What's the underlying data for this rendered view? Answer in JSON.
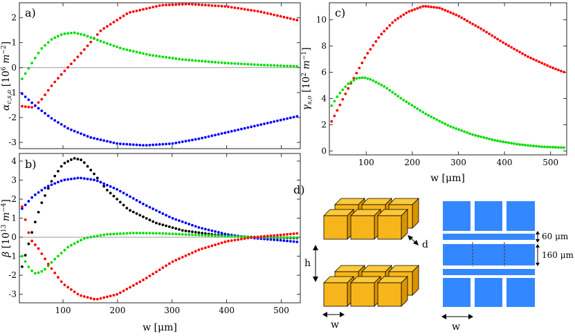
{
  "chart_data": [
    {
      "id": "a",
      "type": "scatter",
      "panel_label": "a)",
      "ylabel": "α_{c,s,o} [10^6 m^-2]",
      "xlim": [
        20,
        535
      ],
      "ylim": [
        -3.25,
        2.6
      ],
      "x_ticks": [
        100,
        200,
        300,
        400,
        500
      ],
      "y_ticks": [
        -3,
        -2,
        -1,
        0,
        1,
        2
      ],
      "zero_line": true,
      "series": [
        {
          "name": "red",
          "color": "#ff0000",
          "keypoints": [
            [
              25,
              -1.55
            ],
            [
              45,
              -1.6
            ],
            [
              60,
              -1.3
            ],
            [
              80,
              -0.7
            ],
            [
              100,
              -0.2
            ],
            [
              130,
              0.5
            ],
            [
              170,
              1.5
            ],
            [
              220,
              2.2
            ],
            [
              280,
              2.5
            ],
            [
              330,
              2.55
            ],
            [
              400,
              2.45
            ],
            [
              460,
              2.25
            ],
            [
              530,
              1.9
            ]
          ]
        },
        {
          "name": "green",
          "color": "#00dd00",
          "keypoints": [
            [
              25,
              -0.45
            ],
            [
              35,
              -0.1
            ],
            [
              45,
              0.25
            ],
            [
              60,
              0.75
            ],
            [
              80,
              1.15
            ],
            [
              100,
              1.35
            ],
            [
              120,
              1.4
            ],
            [
              140,
              1.3
            ],
            [
              170,
              1.05
            ],
            [
              210,
              0.75
            ],
            [
              260,
              0.5
            ],
            [
              320,
              0.32
            ],
            [
              400,
              0.18
            ],
            [
              470,
              0.1
            ],
            [
              530,
              0.05
            ]
          ]
        },
        {
          "name": "blue",
          "color": "#0000ff",
          "keypoints": [
            [
              25,
              -1.05
            ],
            [
              50,
              -1.55
            ],
            [
              80,
              -2.05
            ],
            [
              110,
              -2.45
            ],
            [
              150,
              -2.8
            ],
            [
              200,
              -3.05
            ],
            [
              250,
              -3.12
            ],
            [
              300,
              -3.05
            ],
            [
              350,
              -2.85
            ],
            [
              400,
              -2.6
            ],
            [
              450,
              -2.35
            ],
            [
              500,
              -2.1
            ],
            [
              530,
              -1.95
            ]
          ]
        }
      ]
    },
    {
      "id": "b",
      "type": "scatter",
      "panel_label": "b)",
      "xlabel": "w [μm]",
      "ylabel": "β [10^13 m^-4]",
      "xlim": [
        20,
        535
      ],
      "ylim": [
        -3.45,
        4.4
      ],
      "x_ticks": [
        100,
        200,
        300,
        400,
        500
      ],
      "y_ticks": [
        -3,
        -2,
        -1,
        0,
        1,
        2,
        3,
        4
      ],
      "zero_line": true,
      "series": [
        {
          "name": "black",
          "color": "#000000",
          "keypoints": [
            [
              25,
              -1.55
            ],
            [
              35,
              -0.55
            ],
            [
              45,
              0.45
            ],
            [
              60,
              1.75
            ],
            [
              80,
              3.0
            ],
            [
              100,
              3.85
            ],
            [
              120,
              4.15
            ],
            [
              135,
              4.05
            ],
            [
              155,
              3.4
            ],
            [
              180,
              2.5
            ],
            [
              220,
              1.45
            ],
            [
              270,
              0.75
            ],
            [
              320,
              0.35
            ],
            [
              380,
              0.12
            ],
            [
              440,
              0.02
            ],
            [
              480,
              -0.02
            ],
            [
              530,
              -0.05
            ]
          ]
        },
        {
          "name": "blue",
          "color": "#0000ff",
          "keypoints": [
            [
              25,
              1.5
            ],
            [
              45,
              2.15
            ],
            [
              70,
              2.65
            ],
            [
              100,
              3.0
            ],
            [
              130,
              3.12
            ],
            [
              160,
              3.0
            ],
            [
              200,
              2.5
            ],
            [
              250,
              1.7
            ],
            [
              300,
              1.0
            ],
            [
              350,
              0.5
            ],
            [
              400,
              0.15
            ],
            [
              450,
              -0.05
            ],
            [
              500,
              -0.17
            ],
            [
              530,
              -0.25
            ]
          ]
        },
        {
          "name": "green",
          "color": "#00dd00",
          "keypoints": [
            [
              25,
              -1.0
            ],
            [
              40,
              -1.7
            ],
            [
              50,
              -1.92
            ],
            [
              65,
              -1.75
            ],
            [
              85,
              -1.15
            ],
            [
              110,
              -0.5
            ],
            [
              140,
              -0.05
            ],
            [
              180,
              0.15
            ],
            [
              230,
              0.22
            ],
            [
              280,
              0.2
            ],
            [
              340,
              0.12
            ],
            [
              400,
              0.05
            ],
            [
              460,
              0.0
            ],
            [
              530,
              -0.02
            ]
          ]
        },
        {
          "name": "red",
          "color": "#ff0000",
          "keypoints": [
            [
              25,
              1.6
            ],
            [
              40,
              -0.1
            ],
            [
              55,
              -0.6
            ],
            [
              75,
              -1.5
            ],
            [
              100,
              -2.45
            ],
            [
              130,
              -3.05
            ],
            [
              160,
              -3.28
            ],
            [
              200,
              -3.0
            ],
            [
              250,
              -2.2
            ],
            [
              300,
              -1.3
            ],
            [
              350,
              -0.65
            ],
            [
              400,
              -0.22
            ],
            [
              450,
              0.0
            ],
            [
              500,
              0.12
            ],
            [
              530,
              0.2
            ]
          ]
        }
      ]
    },
    {
      "id": "c",
      "type": "scatter",
      "panel_label": "c)",
      "xlabel": "w [μm]",
      "ylabel": "γ_{s,o} [10^2 m^-1]",
      "xlim": [
        20,
        535
      ],
      "ylim": [
        -0.3,
        11.3
      ],
      "x_ticks": [
        100,
        200,
        300,
        400,
        500
      ],
      "y_ticks": [
        0,
        2,
        4,
        6,
        8,
        10
      ],
      "zero_line": false,
      "series": [
        {
          "name": "red",
          "color": "#ff0000",
          "keypoints": [
            [
              25,
              2.25
            ],
            [
              40,
              3.3
            ],
            [
              60,
              4.7
            ],
            [
              80,
              6.0
            ],
            [
              100,
              7.3
            ],
            [
              130,
              8.8
            ],
            [
              160,
              9.9
            ],
            [
              190,
              10.6
            ],
            [
              225,
              11.05
            ],
            [
              260,
              10.9
            ],
            [
              300,
              10.3
            ],
            [
              350,
              9.3
            ],
            [
              400,
              8.2
            ],
            [
              450,
              7.2
            ],
            [
              500,
              6.4
            ],
            [
              530,
              6.0
            ]
          ]
        },
        {
          "name": "green",
          "color": "#00dd00",
          "keypoints": [
            [
              25,
              3.45
            ],
            [
              40,
              4.3
            ],
            [
              60,
              5.1
            ],
            [
              80,
              5.55
            ],
            [
              95,
              5.6
            ],
            [
              110,
              5.45
            ],
            [
              140,
              4.9
            ],
            [
              180,
              3.9
            ],
            [
              230,
              2.8
            ],
            [
              280,
              1.9
            ],
            [
              330,
              1.25
            ],
            [
              380,
              0.8
            ],
            [
              430,
              0.5
            ],
            [
              480,
              0.32
            ],
            [
              530,
              0.25
            ]
          ]
        }
      ]
    }
  ],
  "diagram": {
    "panel_label": "d)",
    "block_labels": {
      "height": "h",
      "width": "w",
      "depth": "d"
    },
    "top_view": {
      "width_label": "w",
      "gap_label": "60 μm",
      "block_label": "160 μm"
    }
  },
  "colors": {
    "block_fill": "#f7b51c",
    "block_top": "#fbc93a",
    "block_side": "#d99400",
    "plan_blue": "#3388ff"
  }
}
